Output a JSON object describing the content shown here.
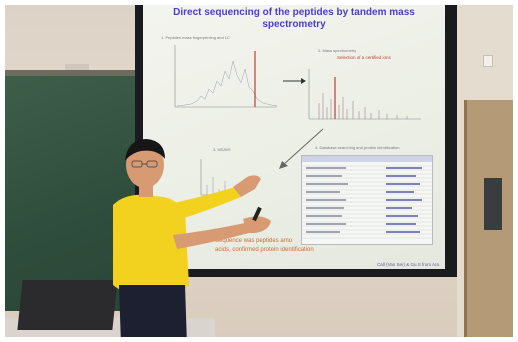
{
  "slide": {
    "title_line1": "Direct sequencing of the peptides by tandem mass",
    "title_line2": "spectrometry",
    "panel1_label": "1. Peptides mass fingerprinting and LC",
    "panel2_label": "2. Mass spectrometry",
    "selection_text": "Selection of a certified ions",
    "panel3_label": "3. MS/MS",
    "panel4_label": "4. Database searching and protein identification",
    "note_line1": "Sequence was peptides amo",
    "note_line2": "acids, confirmed protein identification",
    "footer": "Call (Van Ser) & Gu.S from Ara"
  },
  "colors": {
    "title": "#4a40c4",
    "accent": "#c53b2e",
    "shirt": "#f2d21e"
  }
}
